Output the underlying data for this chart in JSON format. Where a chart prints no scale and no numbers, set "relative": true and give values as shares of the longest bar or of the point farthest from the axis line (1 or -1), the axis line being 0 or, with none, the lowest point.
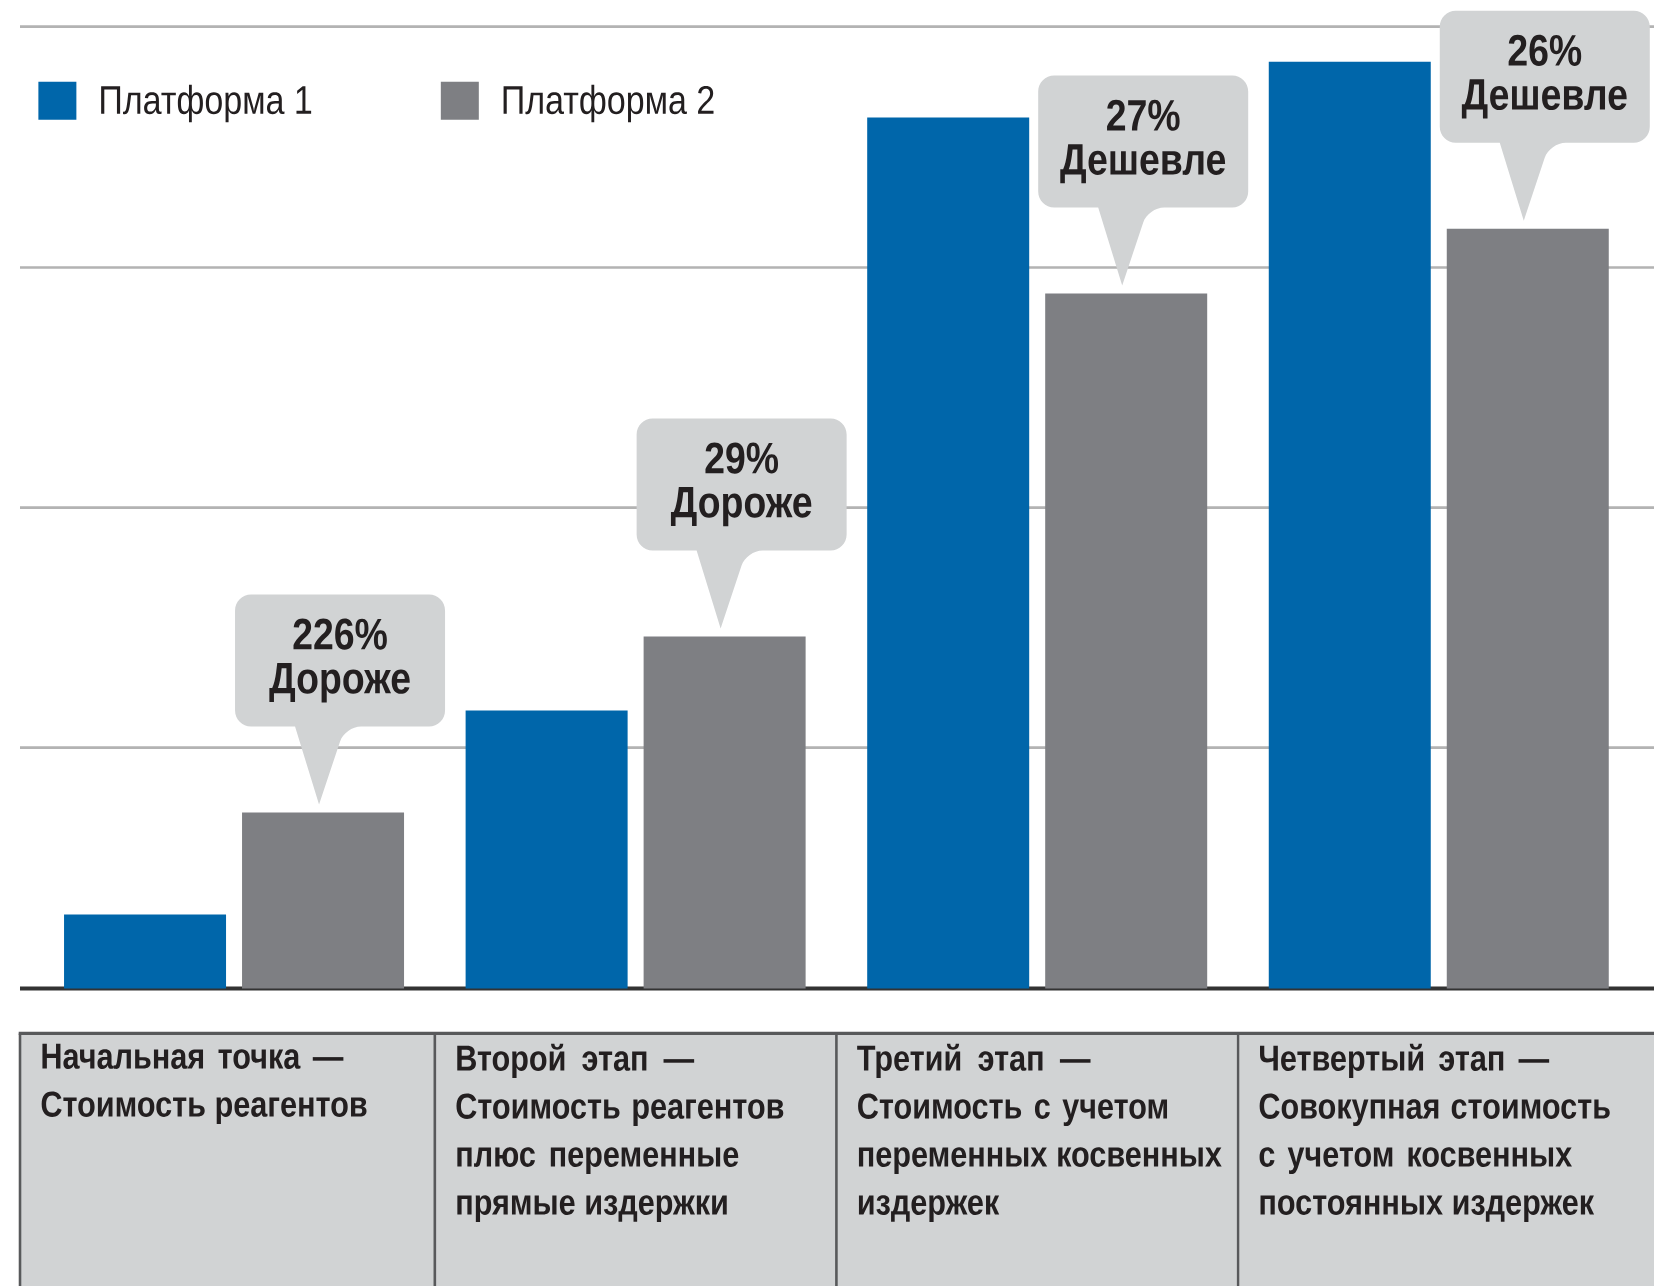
{
  "chart_data": {
    "type": "bar",
    "categories": [
      "Начальная точка — Стоимость реагентов",
      "Второй этап — Стоимость реагентов плюс переменные прямые издержки",
      "Третий этап — Стоимость с учетом переменных косвенных издержек",
      "Четвертый этап — Совокупная стоимость с учетом косвенных постоянных издержек"
    ],
    "series": [
      {
        "name": "Платформа 1",
        "color": "#0066aa",
        "values": [
          0.08,
          0.3,
          0.94,
          1
        ]
      },
      {
        "name": "Платформа 2",
        "color": "#7e7f83",
        "values": [
          0.19,
          0.38,
          0.75,
          0.82
        ]
      }
    ],
    "relative": true,
    "grid": "y",
    "legend": "top left",
    "annotations": [
      "226% Дороже",
      "29% Дороже",
      "27% Дешевле",
      "26% Дешевле"
    ]
  }
}
